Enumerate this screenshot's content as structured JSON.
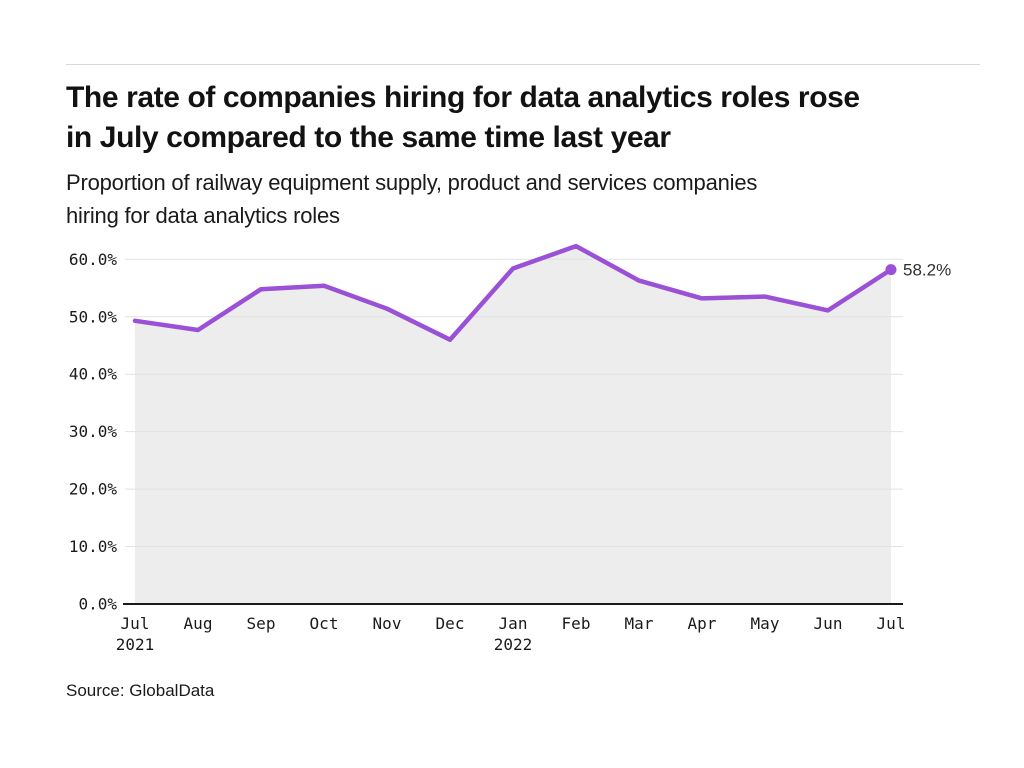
{
  "chart_data": {
    "type": "line",
    "title": "The rate of companies hiring for data analytics roles rose\nin July compared to the same time last year",
    "subtitle": "Proportion of railway equipment supply, product and services companies\nhiring for data analytics roles",
    "source": "Source: GlobalData",
    "categories": [
      "Jul 2021",
      "Aug 2021",
      "Sep 2021",
      "Oct 2021",
      "Nov 2021",
      "Dec 2021",
      "Jan 2022",
      "Feb 2022",
      "Mar 2022",
      "Apr 2022",
      "May 2022",
      "Jun 2022",
      "Jul 2022"
    ],
    "x_tick_labels": [
      "Jul",
      "Aug",
      "Sep",
      "Oct",
      "Nov",
      "Dec",
      "Jan",
      "Feb",
      "Mar",
      "Apr",
      "May",
      "Jun",
      "Jul"
    ],
    "x_year_labels": [
      {
        "index": 0,
        "label": "2021"
      },
      {
        "index": 6,
        "label": "2022"
      }
    ],
    "values": [
      49.3,
      47.7,
      54.8,
      55.4,
      51.4,
      46.0,
      58.4,
      62.3,
      56.3,
      53.2,
      53.5,
      51.1,
      58.2
    ],
    "end_point_label": "58.2%",
    "ylim": [
      0,
      65
    ],
    "yticks": [
      0,
      10,
      20,
      30,
      40,
      50,
      60
    ],
    "ytick_labels": [
      "0.0%",
      "10.0%",
      "20.0%",
      "30.0%",
      "40.0%",
      "50.0%",
      "60.0%"
    ],
    "grid": "horizontal",
    "legend": "none",
    "area_fill": true,
    "colors": {
      "line": "#9B51D6",
      "area": "#EDEDED",
      "grid": "#E2E2E2",
      "axis": "#1A1A1A",
      "tick_text": "#1A1A1A",
      "annotation_text": "#303030"
    }
  }
}
